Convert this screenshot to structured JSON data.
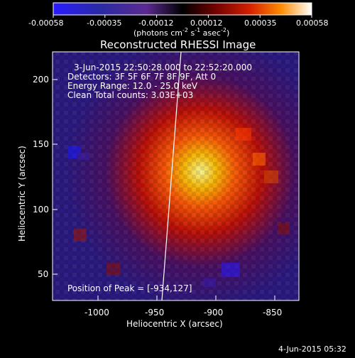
{
  "colorbar": {
    "ticks": [
      "-0.00058",
      "-0.00035",
      "-0.00012",
      "0.00012",
      "0.00035",
      "0.00058"
    ],
    "units_main": "(photons cm",
    "units_exp1": "-2",
    "units_mid": " s",
    "units_exp2": "-1",
    "units_end": " asec",
    "units_exp3": "-2",
    "units_close": ")"
  },
  "image": {
    "title": "Reconstructed RHESSI Image",
    "info_lines": [
      "3-Jun-2015 22:50:28.000 to 22:52:20.000",
      "Detectors: 3F 5F 6F 7F 8F 9F, Att 0",
      "Energy Range: 12.0 - 25.0 keV",
      "Clean     Total counts: 3.03E+03"
    ],
    "peak_label": "Position of Peak = [-934,127]"
  },
  "axes": {
    "xlabel": "Heliocentric X (arcsec)",
    "ylabel": "Heliocentric Y (arcsec)",
    "xticks": [
      "-1000",
      "-950",
      "-900",
      "-850"
    ],
    "yticks": [
      "50",
      "100",
      "150",
      "200"
    ]
  },
  "footer": {
    "timestamp": "4-Jun-2015 05:32"
  },
  "colors": {
    "background": "#000000",
    "colorbar_low": "#1a1aff",
    "colorbar_mid": "#000000",
    "colorbar_high": "#ffffff"
  }
}
